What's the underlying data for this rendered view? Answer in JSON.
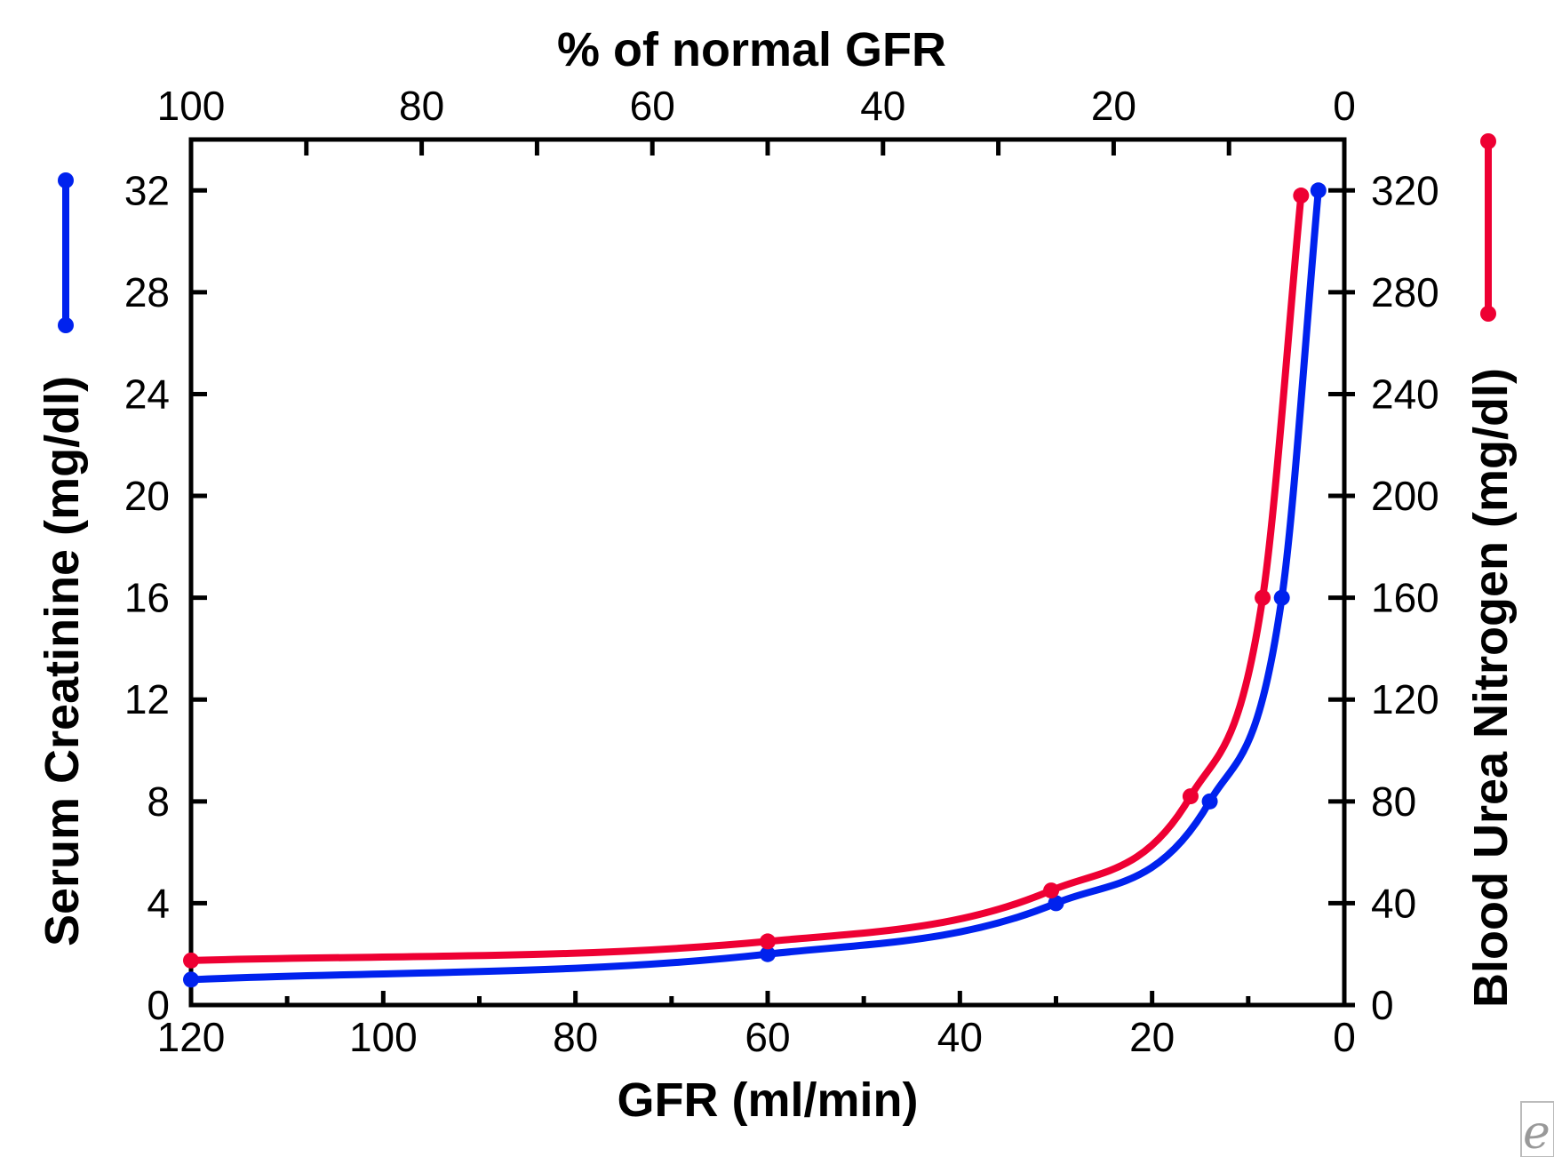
{
  "chart_data": {
    "type": "line",
    "x_label": "GFR (ml/min)",
    "x_ticks": [
      120,
      100,
      80,
      60,
      40,
      20,
      0
    ],
    "x_range": [
      120,
      0
    ],
    "top_axis": {
      "label": "% of normal GFR",
      "ticks": [
        100,
        80,
        60,
        40,
        20,
        0
      ],
      "range": [
        100,
        0
      ]
    },
    "y_left": {
      "label": "Serum Creatinine (mg/dl)",
      "ticks": [
        0,
        4,
        8,
        12,
        16,
        20,
        24,
        28,
        32
      ],
      "range": [
        0,
        34
      ],
      "legend_color": "#0022ee"
    },
    "y_right": {
      "label": "Blood Urea Nitrogen (mg/dl)",
      "ticks": [
        0,
        40,
        80,
        120,
        160,
        200,
        240,
        280,
        320
      ],
      "range": [
        0,
        340
      ],
      "legend_color": "#ee0033"
    },
    "grid": false,
    "series": [
      {
        "axis": "left",
        "color": "#0022ee",
        "x": [
          120,
          60,
          30,
          14,
          6.5,
          2.7
        ],
        "y": [
          1,
          2,
          4,
          8,
          16,
          32
        ]
      },
      {
        "axis": "right",
        "color": "#ee0033",
        "x": [
          120,
          60,
          30.5,
          16,
          8.5,
          4.5
        ],
        "y": [
          17.5,
          25,
          45,
          82,
          160,
          318
        ]
      }
    ]
  },
  "watermark": {
    "icon": "e-logo-icon",
    "glyph": "e"
  }
}
